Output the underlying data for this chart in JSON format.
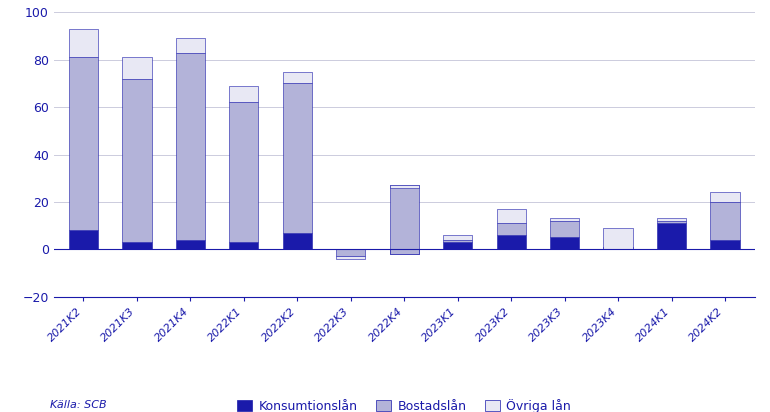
{
  "categories": [
    "2021K2",
    "2021K3",
    "2021K4",
    "2022K1",
    "2022K2",
    "2022K3",
    "2022K4",
    "2023K1",
    "2023K2",
    "2023K3",
    "2023K4",
    "2024K1",
    "2024K2"
  ],
  "konsumtionslaan": [
    8,
    3,
    4,
    3,
    7,
    0,
    -2,
    3,
    6,
    5,
    1,
    11,
    4
  ],
  "bostadslaan": [
    73,
    69,
    79,
    59,
    63,
    -3,
    29,
    1,
    5,
    7,
    -1,
    1,
    16
  ],
  "ovriga_laan": [
    12,
    9,
    6,
    7,
    5,
    -1,
    -1,
    2,
    6,
    1,
    9,
    1,
    4
  ],
  "color_konsumtion": "#1a1aaa",
  "color_bostads": "#b3b3d9",
  "color_ovriga": "#e8e8f4",
  "ylim": [
    -20,
    100
  ],
  "yticks": [
    -20,
    0,
    20,
    40,
    60,
    80,
    100
  ],
  "source": "Källa: SCB",
  "legend_labels": [
    "Konsumtionslån",
    "Bostadslån",
    "Övriga lån"
  ],
  "background_color": "#ffffff",
  "text_color": "#1a1aaa",
  "grid_color": "#ccccdd",
  "bar_width": 0.55
}
